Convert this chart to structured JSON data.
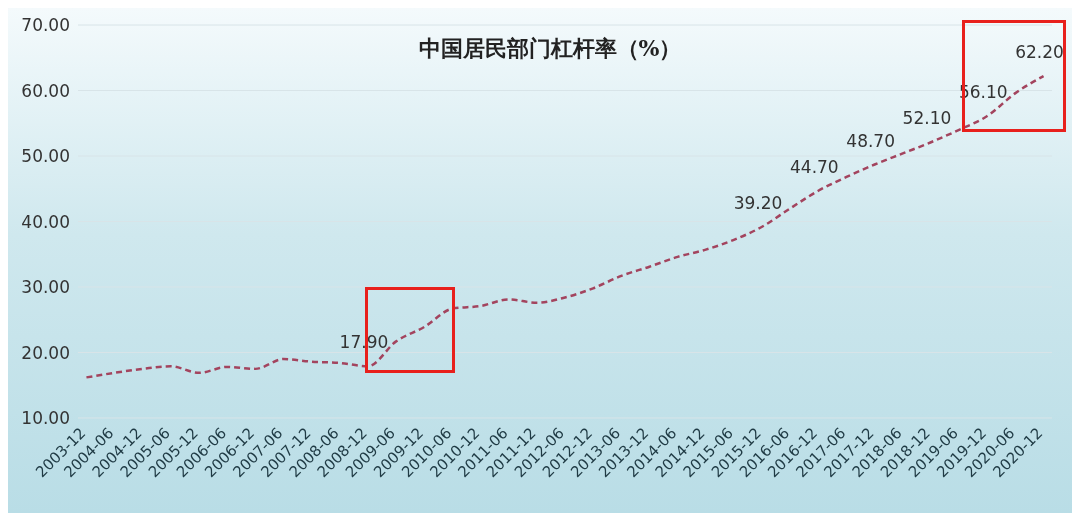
{
  "chart_data": {
    "type": "line",
    "title": "中国居民部门杠杆率（%）",
    "categories": [
      "2003-12",
      "2004-06",
      "2004-12",
      "2005-06",
      "2005-12",
      "2006-06",
      "2006-12",
      "2007-06",
      "2007-12",
      "2008-06",
      "2008-12",
      "2009-06",
      "2009-12",
      "2010-06",
      "2010-12",
      "2011-06",
      "2011-12",
      "2012-06",
      "2012-12",
      "2013-06",
      "2013-12",
      "2014-06",
      "2014-12",
      "2015-06",
      "2015-12",
      "2016-06",
      "2016-12",
      "2017-06",
      "2017-12",
      "2018-06",
      "2018-12",
      "2019-06",
      "2019-12",
      "2020-06",
      "2020-12"
    ],
    "series": [
      {
        "color": "#a3445e",
        "line_style": "dashed",
        "marker": "none",
        "values": [
          16.2,
          16.9,
          17.5,
          17.9,
          16.9,
          17.8,
          17.5,
          19.0,
          18.6,
          18.4,
          17.9,
          21.7,
          23.9,
          26.7,
          27.1,
          28.1,
          27.6,
          28.4,
          29.8,
          31.7,
          33.1,
          34.6,
          35.7,
          37.2,
          39.2,
          42.0,
          44.7,
          46.8,
          48.7,
          50.4,
          52.1,
          54.0,
          56.1,
          59.6,
          62.2
        ],
        "value_labels": [
          null,
          null,
          null,
          null,
          null,
          null,
          null,
          null,
          null,
          null,
          "17.90",
          null,
          null,
          null,
          null,
          null,
          null,
          null,
          null,
          null,
          null,
          null,
          null,
          null,
          "39.20",
          null,
          "44.70",
          null,
          "48.70",
          null,
          "52.10",
          null,
          "56.10",
          null,
          "62.20"
        ]
      }
    ],
    "ylim": [
      10,
      70
    ],
    "yticks": [
      {
        "value": 10,
        "label": "10.00"
      },
      {
        "value": 20,
        "label": "20.00"
      },
      {
        "value": 30,
        "label": "30.00"
      },
      {
        "value": 40,
        "label": "40.00"
      },
      {
        "value": 50,
        "label": "50.00"
      },
      {
        "value": 60,
        "label": "60.00"
      },
      {
        "value": 70,
        "label": "70.00"
      }
    ],
    "grid": "y"
  }
}
